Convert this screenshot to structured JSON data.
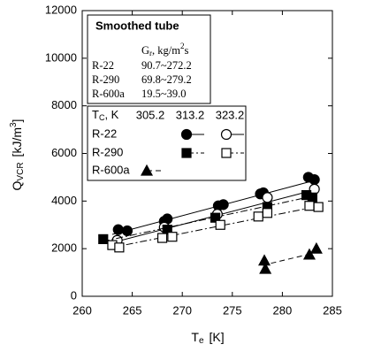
{
  "chart_data": {
    "type": "scatter",
    "xlabel": {
      "main": "T",
      "sub": "e",
      "unit": "[K]"
    },
    "ylabel": {
      "main": "Q",
      "sub": "VCR",
      "unit": "[kJ/m",
      "sup": "3",
      "close": "]"
    },
    "xlim": [
      260,
      285
    ],
    "xticks": [
      260,
      265,
      270,
      275,
      280,
      285
    ],
    "ylim": [
      0,
      12000
    ],
    "yticks": [
      0,
      2000,
      4000,
      6000,
      8000,
      10000,
      12000
    ],
    "info_box": {
      "title": "Smoothed tube",
      "header": {
        "main": "G",
        "sub": "r",
        "unit": ", kg/m",
        "sup": "2",
        "tail": "s"
      },
      "rows": [
        [
          "R-22",
          "90.7~272.2"
        ],
        [
          "R-290",
          "69.8~279.2"
        ],
        [
          "R-600a",
          "19.5~39.0"
        ]
      ]
    },
    "legend": {
      "header": {
        "main": "T",
        "sub": "C",
        "unit": ", K"
      },
      "tc": [
        "305.2",
        "313.2",
        "323.2"
      ],
      "rows": [
        "R-22",
        "R-290",
        "R-600a"
      ]
    },
    "series": [
      {
        "row": 0,
        "tc": 1,
        "marker": "circle",
        "color": "#000000",
        "fill": "#000000",
        "dash": "none",
        "x": [
          263.6,
          264.5,
          268.2,
          268.5,
          273.6,
          274.1,
          277.8,
          278.1,
          282.6,
          283.2
        ],
        "values": [
          2800,
          2750,
          3150,
          3250,
          3800,
          3850,
          4300,
          4350,
          5000,
          4900
        ],
        "fit_x": [
          263,
          283.5
        ],
        "fit_y": [
          2600,
          4900
        ]
      },
      {
        "row": 0,
        "tc": 2,
        "marker": "circle",
        "color": "#000000",
        "fill": "#ffffff",
        "dash": "none",
        "x": [
          263.5,
          268.2,
          273.5,
          278.5,
          283.2
        ],
        "values": [
          2350,
          2900,
          3450,
          4150,
          4500
        ],
        "fit_x": [
          263,
          283.5
        ],
        "fit_y": [
          2250,
          4500
        ]
      },
      {
        "row": 1,
        "tc": 1,
        "marker": "square",
        "color": "#000000",
        "fill": "#000000",
        "dash": "8 3 2 3",
        "x": [
          262.1,
          268.5,
          273.3,
          278.5,
          282.4,
          283
        ],
        "values": [
          2400,
          2800,
          3300,
          3750,
          4250,
          4150
        ],
        "fit_x": [
          262,
          283
        ],
        "fit_y": [
          2300,
          4200
        ]
      },
      {
        "row": 1,
        "tc": 2,
        "marker": "square",
        "color": "#000000",
        "fill": "#ffffff",
        "dash": "8 3 2 3",
        "x": [
          263,
          263.7,
          268,
          269,
          273.8,
          277.6,
          278.5,
          282.7,
          283.6
        ],
        "values": [
          2150,
          2050,
          2450,
          2500,
          3000,
          3350,
          3500,
          3800,
          3750
        ],
        "fit_x": [
          263,
          283.8
        ],
        "fit_y": [
          2050,
          3800
        ]
      },
      {
        "row": 2,
        "tc": 0,
        "marker": "triangle",
        "color": "#000000",
        "fill": "#000000",
        "dash": "6 4",
        "x": [
          278.2,
          278.3,
          282.7,
          283.4
        ],
        "values": [
          1500,
          1150,
          1750,
          2000
        ],
        "fit_x": [
          278,
          283.5
        ],
        "fit_y": [
          1300,
          1850
        ]
      }
    ]
  }
}
